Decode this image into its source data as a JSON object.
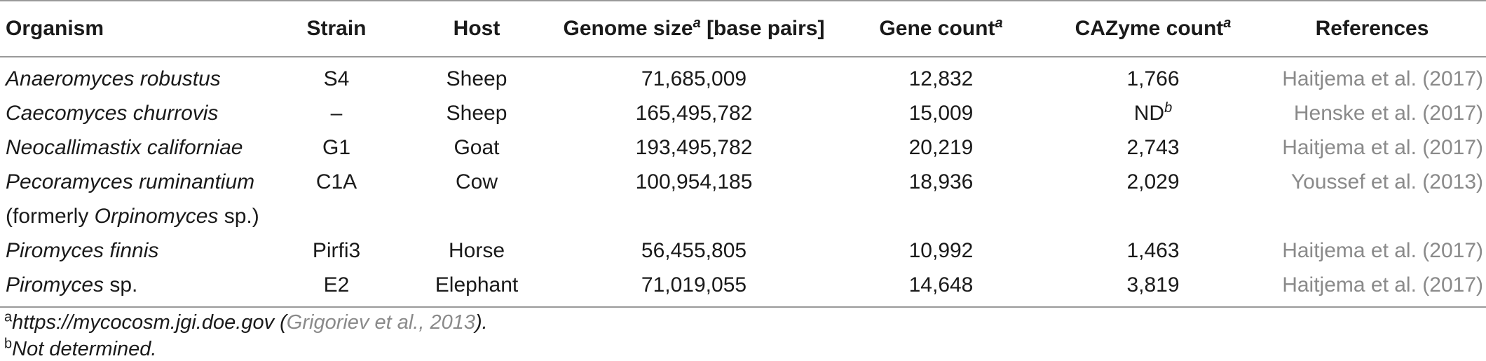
{
  "table": {
    "headers": {
      "organism": "Organism",
      "strain": "Strain",
      "host": "Host",
      "genome_size": "Genome size",
      "genome_size_sup": "a",
      "genome_size_unit": " [base pairs]",
      "gene_count": "Gene count",
      "gene_count_sup": "a",
      "cazyme_count": "CAZyme count",
      "cazyme_count_sup": "a",
      "references": "References"
    },
    "rows": [
      {
        "organism": "Anaeromyces robustus",
        "strain": "S4",
        "host": "Sheep",
        "genome_size": "71,685,009",
        "gene_count": "12,832",
        "cazyme": "1,766",
        "cazyme_sup": "",
        "reference": "Haitjema et al. (2017)"
      },
      {
        "organism": "Caecomyces churrovis",
        "strain": "–",
        "host": "Sheep",
        "genome_size": "165,495,782",
        "gene_count": "15,009",
        "cazyme": "ND",
        "cazyme_sup": "b",
        "reference": "Henske et al. (2017)"
      },
      {
        "organism": "Neocallimastix californiae",
        "strain": "G1",
        "host": "Goat",
        "genome_size": "193,495,782",
        "gene_count": "20,219",
        "cazyme": "2,743",
        "cazyme_sup": "",
        "reference": "Haitjema et al. (2017)"
      },
      {
        "organism": "Pecoramyces ruminantium",
        "strain": "C1A",
        "host": "Cow",
        "genome_size": "100,954,185",
        "gene_count": "18,936",
        "cazyme": "2,029",
        "cazyme_sup": "",
        "reference": "Youssef et al. (2013)"
      },
      {
        "organism_pre": "(formerly ",
        "organism_it": "Orpinomyces",
        "organism_post": " sp.)"
      },
      {
        "organism": "Piromyces finnis",
        "strain": "Pirfi3",
        "host": "Horse",
        "genome_size": "56,455,805",
        "gene_count": "10,992",
        "cazyme": "1,463",
        "cazyme_sup": "",
        "reference": "Haitjema et al. (2017)"
      },
      {
        "organism_it": "Piromyces",
        "organism_post": " sp.",
        "strain": "E2",
        "host": "Elephant",
        "genome_size": "71,019,055",
        "gene_count": "14,648",
        "cazyme": "3,819",
        "cazyme_sup": "",
        "reference": "Haitjema et al. (2017)"
      }
    ]
  },
  "footnotes": {
    "a_mark": "a",
    "a_url": "https://mycocosm.jgi.doe.gov",
    "a_open": " (",
    "a_cite": "Grigoriev et al., 2013",
    "a_close": ").",
    "b_mark": "b",
    "b_text": "Not determined."
  }
}
